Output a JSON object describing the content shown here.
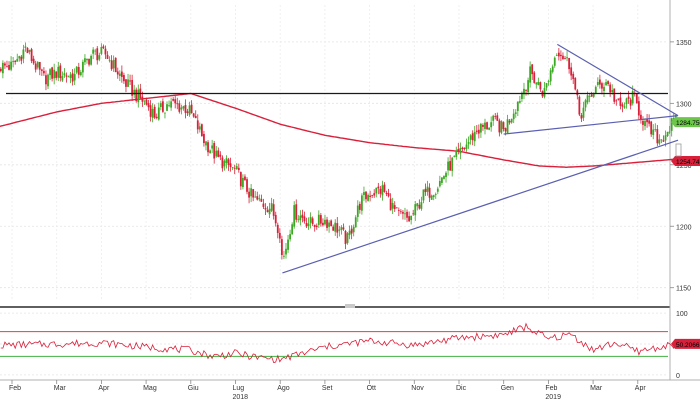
{
  "chart_data": {
    "type": "candlestick",
    "panels": [
      "price",
      "rsi"
    ],
    "price_axis": {
      "ylim": [
        1140,
        1380
      ],
      "ticks": [
        1150,
        1200,
        1250,
        1300,
        1350
      ]
    },
    "rsi_axis": {
      "ylim": [
        -5,
        105
      ],
      "ticks": [
        0,
        50,
        100
      ],
      "upper_line": 70,
      "lower_line": 30
    },
    "x_axis": {
      "months": [
        "Feb",
        "Mar",
        "Apr",
        "Mag",
        "Giu",
        "Lug",
        "Ago",
        "Set",
        "Ott",
        "Nov",
        "Dic",
        "Gen",
        "Feb",
        "Mar",
        "Apr"
      ],
      "years": [
        {
          "label": "2018",
          "after_month": "Lug"
        },
        {
          "label": "2019",
          "after_month": "Feb"
        }
      ]
    },
    "price_close_anchors": [
      {
        "m": 0.0,
        "v": 1330
      },
      {
        "m": 0.3,
        "v": 1345
      },
      {
        "m": 0.7,
        "v": 1320
      },
      {
        "m": 1.0,
        "v": 1325
      },
      {
        "m": 1.4,
        "v": 1322
      },
      {
        "m": 1.8,
        "v": 1340
      },
      {
        "m": 2.1,
        "v": 1340
      },
      {
        "m": 2.5,
        "v": 1318
      },
      {
        "m": 2.8,
        "v": 1306
      },
      {
        "m": 3.0,
        "v": 1300
      },
      {
        "m": 3.2,
        "v": 1290
      },
      {
        "m": 3.5,
        "v": 1300
      },
      {
        "m": 3.9,
        "v": 1296
      },
      {
        "m": 4.0,
        "v": 1292
      },
      {
        "m": 4.3,
        "v": 1270
      },
      {
        "m": 4.6,
        "v": 1255
      },
      {
        "m": 5.0,
        "v": 1245
      },
      {
        "m": 5.4,
        "v": 1222
      },
      {
        "m": 5.8,
        "v": 1215
      },
      {
        "m": 6.0,
        "v": 1195
      },
      {
        "m": 6.05,
        "v": 1170
      },
      {
        "m": 6.3,
        "v": 1212
      },
      {
        "m": 6.7,
        "v": 1202
      },
      {
        "m": 7.0,
        "v": 1205
      },
      {
        "m": 7.3,
        "v": 1198
      },
      {
        "m": 7.5,
        "v": 1188
      },
      {
        "m": 7.8,
        "v": 1220
      },
      {
        "m": 8.0,
        "v": 1227
      },
      {
        "m": 8.3,
        "v": 1230
      },
      {
        "m": 8.6,
        "v": 1210
      },
      {
        "m": 8.9,
        "v": 1205
      },
      {
        "m": 9.2,
        "v": 1225
      },
      {
        "m": 9.5,
        "v": 1232
      },
      {
        "m": 9.8,
        "v": 1250
      },
      {
        "m": 10.0,
        "v": 1258
      },
      {
        "m": 10.4,
        "v": 1278
      },
      {
        "m": 10.8,
        "v": 1285
      },
      {
        "m": 11.0,
        "v": 1278
      },
      {
        "m": 11.3,
        "v": 1300
      },
      {
        "m": 11.6,
        "v": 1325
      },
      {
        "m": 11.9,
        "v": 1308
      },
      {
        "m": 12.2,
        "v": 1345
      },
      {
        "m": 12.5,
        "v": 1330
      },
      {
        "m": 12.7,
        "v": 1290
      },
      {
        "m": 13.0,
        "v": 1310
      },
      {
        "m": 13.3,
        "v": 1318
      },
      {
        "m": 13.6,
        "v": 1295
      },
      {
        "m": 13.9,
        "v": 1305
      },
      {
        "m": 14.2,
        "v": 1280
      },
      {
        "m": 14.5,
        "v": 1270
      },
      {
        "m": 14.8,
        "v": 1284.75
      }
    ],
    "moving_average": {
      "anchors": [
        {
          "m": -0.3,
          "v": 1281
        },
        {
          "m": 1.0,
          "v": 1293
        },
        {
          "m": 2.0,
          "v": 1300
        },
        {
          "m": 3.0,
          "v": 1304
        },
        {
          "m": 4.0,
          "v": 1308
        },
        {
          "m": 5.0,
          "v": 1296
        },
        {
          "m": 6.0,
          "v": 1283
        },
        {
          "m": 7.0,
          "v": 1274
        },
        {
          "m": 8.0,
          "v": 1268
        },
        {
          "m": 9.0,
          "v": 1264
        },
        {
          "m": 10.0,
          "v": 1261
        },
        {
          "m": 11.0,
          "v": 1254
        },
        {
          "m": 11.8,
          "v": 1249
        },
        {
          "m": 12.4,
          "v": 1248
        },
        {
          "m": 13.0,
          "v": 1249
        },
        {
          "m": 14.0,
          "v": 1252
        },
        {
          "m": 14.9,
          "v": 1254.74
        }
      ],
      "color": "#d8203a"
    },
    "rsi_anchors": [
      {
        "m": -0.3,
        "v": 48
      },
      {
        "m": 1.0,
        "v": 50
      },
      {
        "m": 2.0,
        "v": 52
      },
      {
        "m": 3.0,
        "v": 45
      },
      {
        "m": 4.0,
        "v": 40
      },
      {
        "m": 4.5,
        "v": 30
      },
      {
        "m": 5.0,
        "v": 35
      },
      {
        "m": 5.5,
        "v": 28
      },
      {
        "m": 6.0,
        "v": 25
      },
      {
        "m": 7.0,
        "v": 45
      },
      {
        "m": 8.0,
        "v": 55
      },
      {
        "m": 9.0,
        "v": 48
      },
      {
        "m": 10.0,
        "v": 60
      },
      {
        "m": 11.0,
        "v": 65
      },
      {
        "m": 11.5,
        "v": 78
      },
      {
        "m": 12.0,
        "v": 58
      },
      {
        "m": 12.5,
        "v": 66
      },
      {
        "m": 13.0,
        "v": 40
      },
      {
        "m": 13.5,
        "v": 52
      },
      {
        "m": 14.0,
        "v": 38
      },
      {
        "m": 14.5,
        "v": 45
      },
      {
        "m": 14.9,
        "v": 50.2
      }
    ],
    "horizontal_line": {
      "value": 1308,
      "color": "#1a1a1a"
    },
    "trendlines": [
      {
        "from": {
          "m": 6.05,
          "v": 1162
        },
        "to": {
          "m": 14.9,
          "v": 1270
        }
      },
      {
        "from": {
          "m": 11.0,
          "v": 1275
        },
        "to": {
          "m": 14.9,
          "v": 1290
        }
      },
      {
        "from": {
          "m": 12.2,
          "v": 1348
        },
        "to": {
          "m": 14.9,
          "v": 1290
        }
      }
    ],
    "last_price_label": "1284.7500",
    "ma_label": "1254.74",
    "rsi_label": "50.2066",
    "colors": {
      "up": "#3aa822",
      "down": "#d8203a",
      "trendline": "#5a5fb0",
      "rsi_line": "#d8203a",
      "rsi_upper": "#e04040",
      "rsi_lower": "#40b040",
      "last_price_tag": "#6cc64a",
      "ma_tag": "#d8203a",
      "rsi_tag": "#d8203a"
    }
  }
}
